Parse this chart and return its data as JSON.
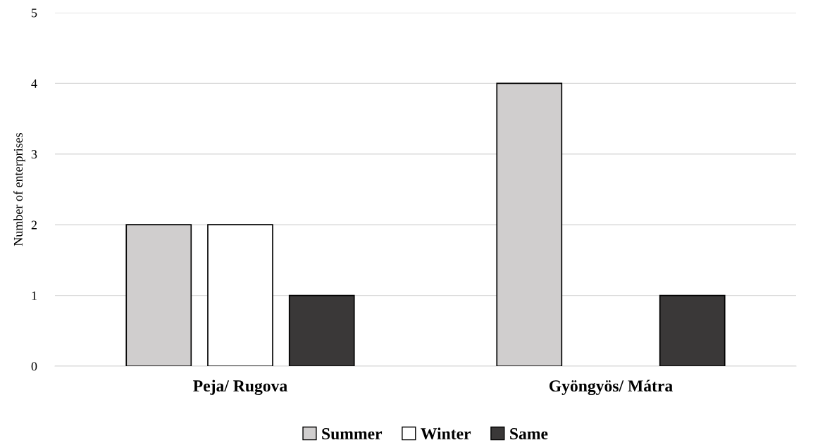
{
  "chart_data": {
    "type": "bar",
    "ylabel": "Number of enterprises",
    "categories": [
      "Peja/ Rugova",
      "Gyöngyös/ Mátra"
    ],
    "series": [
      {
        "name": "Summer",
        "color": "#d0cece",
        "values": [
          2,
          4
        ]
      },
      {
        "name": "Winter",
        "color": "#ffffff",
        "values": [
          2,
          0
        ]
      },
      {
        "name": "Same",
        "color": "#3a3838",
        "values": [
          1,
          1
        ]
      }
    ],
    "ylim": [
      0,
      5
    ],
    "yticks": [
      0,
      1,
      2,
      3,
      4,
      5
    ],
    "grid": "y",
    "legend": "bottom"
  }
}
